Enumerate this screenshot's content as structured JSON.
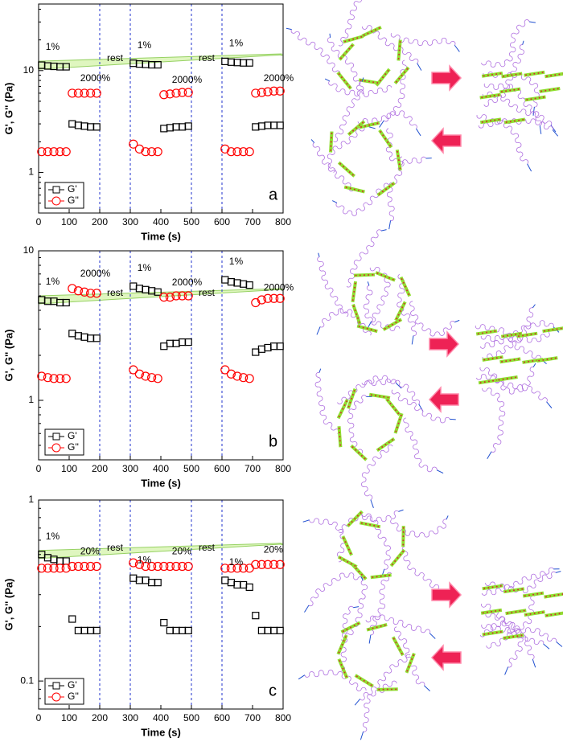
{
  "chart_data": [
    {
      "type": "scatter",
      "panel_label": "a",
      "x_label": "Time (s)",
      "y_label": "G', G'' (Pa)",
      "xlim": [
        0,
        800
      ],
      "xticks": [
        0,
        100,
        200,
        300,
        400,
        500,
        600,
        700,
        800
      ],
      "ylim": [
        0.4,
        45
      ],
      "yticks": [
        1,
        10
      ],
      "log_y": true,
      "vlines": [
        200,
        300,
        500,
        600
      ],
      "legend": "lower left",
      "strain_labels": [
        "1%",
        "2000%"
      ],
      "rest_label": "rest",
      "x": [
        10,
        30,
        50,
        70,
        90,
        110,
        130,
        150,
        170,
        190,
        310,
        330,
        350,
        370,
        390,
        410,
        430,
        450,
        470,
        490,
        610,
        630,
        650,
        670,
        690,
        710,
        730,
        750,
        770,
        790
      ],
      "series": [
        {
          "name": "G'",
          "color": "#000000",
          "marker": "square",
          "values": [
            11.3,
            11.1,
            11.0,
            10.9,
            10.9,
            3.0,
            2.9,
            2.85,
            2.8,
            2.8,
            11.8,
            11.6,
            11.5,
            11.4,
            11.4,
            2.7,
            2.75,
            2.8,
            2.8,
            2.85,
            12.3,
            12.1,
            12.0,
            11.9,
            11.9,
            2.8,
            2.85,
            2.9,
            2.9,
            2.9
          ]
        },
        {
          "name": "G''",
          "color": "#ff0000",
          "marker": "circle",
          "values": [
            1.6,
            1.6,
            1.6,
            1.6,
            1.6,
            6.0,
            6.0,
            6.0,
            6.0,
            6.0,
            1.9,
            1.7,
            1.6,
            1.6,
            1.6,
            5.8,
            5.9,
            6.0,
            6.1,
            6.1,
            1.7,
            1.6,
            1.6,
            1.6,
            1.6,
            6.0,
            6.1,
            6.2,
            6.3,
            6.3
          ]
        }
      ]
    },
    {
      "type": "scatter",
      "panel_label": "b",
      "x_label": "Time (s)",
      "y_label": "G', G'' (Pa)",
      "xlim": [
        0,
        800
      ],
      "xticks": [
        0,
        100,
        200,
        300,
        400,
        500,
        600,
        700,
        800
      ],
      "ylim": [
        0.4,
        10
      ],
      "yticks": [
        1,
        10
      ],
      "log_y": true,
      "vlines": [
        200,
        300,
        500,
        600
      ],
      "legend": "lower left",
      "strain_labels": [
        "1%",
        "2000%"
      ],
      "rest_label": "rest",
      "x": [
        10,
        30,
        50,
        70,
        90,
        110,
        130,
        150,
        170,
        190,
        310,
        330,
        350,
        370,
        390,
        410,
        430,
        450,
        470,
        490,
        610,
        630,
        650,
        670,
        690,
        710,
        730,
        750,
        770,
        790
      ],
      "series": [
        {
          "name": "G'",
          "color": "#000000",
          "marker": "square",
          "values": [
            4.7,
            4.6,
            4.6,
            4.5,
            4.5,
            2.8,
            2.7,
            2.65,
            2.6,
            2.6,
            5.8,
            5.6,
            5.5,
            5.4,
            5.3,
            2.3,
            2.4,
            2.4,
            2.45,
            2.45,
            6.4,
            6.2,
            6.1,
            6.0,
            5.9,
            2.1,
            2.2,
            2.25,
            2.3,
            2.3
          ]
        },
        {
          "name": "G''",
          "color": "#ff0000",
          "marker": "circle",
          "values": [
            1.45,
            1.42,
            1.4,
            1.4,
            1.4,
            5.6,
            5.4,
            5.3,
            5.2,
            5.2,
            1.6,
            1.5,
            1.45,
            1.42,
            1.4,
            4.9,
            4.9,
            5.0,
            5.0,
            5.0,
            1.6,
            1.5,
            1.45,
            1.42,
            1.4,
            4.5,
            4.7,
            4.8,
            4.8,
            4.8
          ]
        }
      ]
    },
    {
      "type": "scatter",
      "panel_label": "c",
      "x_label": "Time (s)",
      "y_label": "G', G'' (Pa)",
      "xlim": [
        0,
        800
      ],
      "xticks": [
        0,
        100,
        200,
        300,
        400,
        500,
        600,
        700,
        800
      ],
      "ylim": [
        0.07,
        1
      ],
      "yticks": [
        0.1,
        1
      ],
      "log_y": true,
      "vlines": [
        200,
        300,
        500,
        600
      ],
      "legend": "lower left",
      "strain_labels": [
        "1%",
        "20%"
      ],
      "rest_label": "rest",
      "x": [
        10,
        30,
        50,
        70,
        90,
        110,
        130,
        150,
        170,
        190,
        310,
        330,
        350,
        370,
        390,
        410,
        430,
        450,
        470,
        490,
        610,
        630,
        650,
        670,
        690,
        710,
        730,
        750,
        770,
        790
      ],
      "series": [
        {
          "name": "G'",
          "color": "#000000",
          "marker": "square",
          "values": [
            0.5,
            0.48,
            0.47,
            0.46,
            0.46,
            0.22,
            0.19,
            0.19,
            0.19,
            0.19,
            0.37,
            0.36,
            0.36,
            0.35,
            0.35,
            0.21,
            0.19,
            0.19,
            0.19,
            0.19,
            0.36,
            0.35,
            0.34,
            0.34,
            0.33,
            0.23,
            0.19,
            0.19,
            0.19,
            0.19
          ]
        },
        {
          "name": "G''",
          "color": "#ff0000",
          "marker": "circle",
          "values": [
            0.42,
            0.42,
            0.42,
            0.42,
            0.42,
            0.43,
            0.43,
            0.43,
            0.43,
            0.43,
            0.45,
            0.44,
            0.43,
            0.43,
            0.43,
            0.43,
            0.43,
            0.43,
            0.43,
            0.43,
            0.42,
            0.42,
            0.42,
            0.42,
            0.42,
            0.44,
            0.44,
            0.44,
            0.44,
            0.44
          ]
        }
      ]
    }
  ]
}
